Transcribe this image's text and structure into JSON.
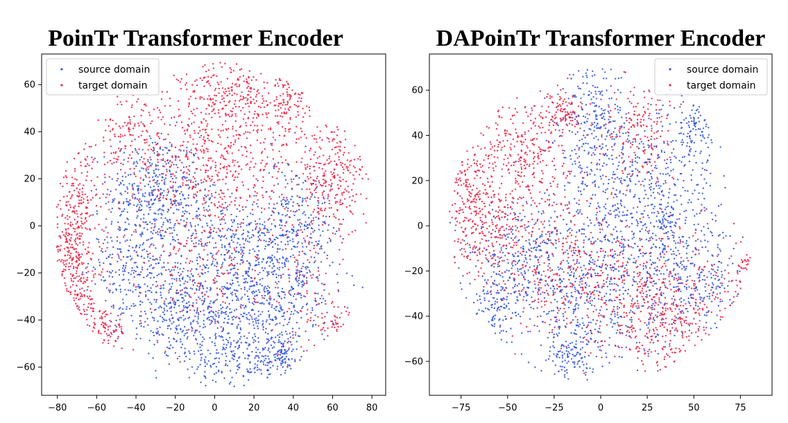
{
  "chart_data": [
    {
      "type": "scatter",
      "title": "PoinTr Transformer Encoder",
      "xlabel": "",
      "ylabel": "",
      "xlim": [
        -88,
        87
      ],
      "ylim": [
        -72,
        73
      ],
      "xticks": [
        -80,
        -60,
        -40,
        -20,
        0,
        20,
        40,
        60,
        80
      ],
      "yticks": [
        -60,
        -40,
        -20,
        0,
        20,
        40,
        60
      ],
      "grid": false,
      "legend_position": "top-left",
      "series": [
        {
          "name": "source domain",
          "color": "#3355dd",
          "clusters": [
            {
              "center": [
                -30,
                15
              ],
              "spread": [
                12,
                12
              ],
              "count": 380
            },
            {
              "center": [
                -40,
                -15
              ],
              "spread": [
                12,
                12
              ],
              "count": 260
            },
            {
              "center": [
                -20,
                -35
              ],
              "spread": [
                14,
                12
              ],
              "count": 300
            },
            {
              "center": [
                10,
                -40
              ],
              "spread": [
                18,
                12
              ],
              "count": 420
            },
            {
              "center": [
                35,
                -25
              ],
              "spread": [
                14,
                14
              ],
              "count": 300
            },
            {
              "center": [
                40,
                5
              ],
              "spread": [
                10,
                12
              ],
              "count": 200
            },
            {
              "center": [
                15,
                -10
              ],
              "spread": [
                14,
                10
              ],
              "count": 260
            },
            {
              "center": [
                -5,
                5
              ],
              "spread": [
                8,
                8
              ],
              "count": 80
            },
            {
              "center": [
                20,
                -58
              ],
              "spread": [
                16,
                4
              ],
              "count": 140
            },
            {
              "center": [
                35,
                -55
              ],
              "spread": [
                4,
                5
              ],
              "count": 60
            }
          ]
        },
        {
          "name": "target domain",
          "color": "#ee2244",
          "clusters": [
            {
              "center": [
                -70,
                5
              ],
              "spread": [
                7,
                14
              ],
              "count": 260
            },
            {
              "center": [
                -70,
                -30
              ],
              "spread": [
                7,
                10
              ],
              "count": 200
            },
            {
              "center": [
                -55,
                -44
              ],
              "spread": [
                5,
                4
              ],
              "count": 80
            },
            {
              "center": [
                -75,
                -12
              ],
              "spread": [
                5,
                4
              ],
              "count": 60
            },
            {
              "center": [
                0,
                25
              ],
              "spread": [
                20,
                16
              ],
              "count": 560
            },
            {
              "center": [
                10,
                55
              ],
              "spread": [
                14,
                8
              ],
              "count": 260
            },
            {
              "center": [
                38,
                52
              ],
              "spread": [
                5,
                10
              ],
              "count": 130
            },
            {
              "center": [
                60,
                20
              ],
              "spread": [
                9,
                12
              ],
              "count": 280
            },
            {
              "center": [
                45,
                -20
              ],
              "spread": [
                8,
                20
              ],
              "count": 120
            },
            {
              "center": [
                -40,
                38
              ],
              "spread": [
                10,
                10
              ],
              "count": 160
            },
            {
              "center": [
                -10,
                -20
              ],
              "spread": [
                18,
                14
              ],
              "count": 180
            },
            {
              "center": [
                60,
                -40
              ],
              "spread": [
                4,
                5
              ],
              "count": 50
            }
          ]
        }
      ]
    },
    {
      "type": "scatter",
      "title": "DAPoinTr Transformer Encoder",
      "xlabel": "",
      "ylabel": "",
      "xlim": [
        -92,
        92
      ],
      "ylim": [
        -75,
        76
      ],
      "xticks": [
        -75,
        -50,
        -25,
        0,
        25,
        50,
        75
      ],
      "yticks": [
        -60,
        -40,
        -20,
        0,
        20,
        40,
        60
      ],
      "grid": false,
      "legend_position": "top-right",
      "series": [
        {
          "name": "source domain",
          "color": "#3355dd",
          "clusters": [
            {
              "center": [
                -5,
                40
              ],
              "spread": [
                10,
                20
              ],
              "count": 350
            },
            {
              "center": [
                25,
                20
              ],
              "spread": [
                18,
                16
              ],
              "count": 320
            },
            {
              "center": [
                50,
                45
              ],
              "spread": [
                6,
                10
              ],
              "count": 120
            },
            {
              "center": [
                -40,
                -15
              ],
              "spread": [
                16,
                14
              ],
              "count": 320
            },
            {
              "center": [
                0,
                -25
              ],
              "spread": [
                20,
                18
              ],
              "count": 500
            },
            {
              "center": [
                40,
                -15
              ],
              "spread": [
                14,
                16
              ],
              "count": 320
            },
            {
              "center": [
                -15,
                -55
              ],
              "spread": [
                8,
                6
              ],
              "count": 130
            },
            {
              "center": [
                60,
                -25
              ],
              "spread": [
                8,
                10
              ],
              "count": 100
            },
            {
              "center": [
                -55,
                -35
              ],
              "spread": [
                8,
                8
              ],
              "count": 120
            }
          ]
        },
        {
          "name": "target domain",
          "color": "#ee2244",
          "clusters": [
            {
              "center": [
                -70,
                15
              ],
              "spread": [
                8,
                14
              ],
              "count": 240
            },
            {
              "center": [
                -40,
                30
              ],
              "spread": [
                14,
                14
              ],
              "count": 320
            },
            {
              "center": [
                -20,
                50
              ],
              "spread": [
                6,
                5
              ],
              "count": 100
            },
            {
              "center": [
                20,
                40
              ],
              "spread": [
                10,
                10
              ],
              "count": 180
            },
            {
              "center": [
                80,
                -25
              ],
              "spread": [
                5,
                7
              ],
              "count": 140
            },
            {
              "center": [
                -20,
                -20
              ],
              "spread": [
                20,
                18
              ],
              "count": 380
            },
            {
              "center": [
                30,
                -30
              ],
              "spread": [
                20,
                16
              ],
              "count": 380
            },
            {
              "center": [
                40,
                -45
              ],
              "spread": [
                12,
                10
              ],
              "count": 160
            },
            {
              "center": [
                -60,
                -5
              ],
              "spread": [
                10,
                10
              ],
              "count": 160
            }
          ]
        }
      ]
    }
  ]
}
